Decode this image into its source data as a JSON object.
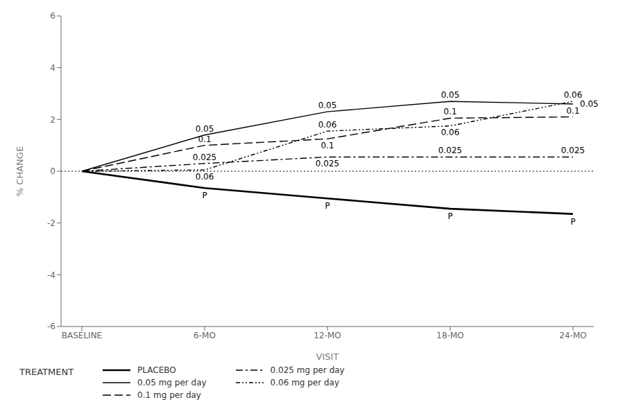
{
  "chart_data": {
    "type": "line",
    "categories": [
      "BASELINE",
      "6-MO",
      "12-MO",
      "18-MO",
      "24-MO"
    ],
    "xlabel": "VISIT",
    "ylabel": "% CHANGE",
    "legend_title": "TREATMENT",
    "ylim": [
      -6,
      6
    ],
    "yticks": [
      -6,
      -4,
      -2,
      0,
      2,
      4,
      6
    ],
    "grid": false,
    "legend": "bottom",
    "hlines": [
      0
    ],
    "series": [
      {
        "name": "PLACEBO",
        "color": "#000000",
        "line_style": "thick",
        "values": [
          0,
          -0.65,
          -1.05,
          -1.45,
          -1.65
        ]
      },
      {
        "name": "0.025 mg per day",
        "color": "#000000",
        "line_style": "dashdot",
        "values": [
          0,
          0.3,
          0.55,
          0.55,
          0.55
        ]
      },
      {
        "name": "0.05 mg per day",
        "color": "#000000",
        "line_style": "solid",
        "values": [
          0,
          1.4,
          2.3,
          2.7,
          2.6
        ]
      },
      {
        "name": "0.06 mg per day",
        "color": "#000000",
        "line_style": "dashdotdot",
        "values": [
          0,
          0.05,
          1.55,
          1.75,
          2.7
        ]
      },
      {
        "name": "0.1 mg per day",
        "color": "#000000",
        "line_style": "dashed",
        "values": [
          0,
          1.0,
          1.25,
          2.05,
          2.1
        ]
      }
    ],
    "annotations": [
      {
        "text": "P",
        "x": "6-MO",
        "y": -0.68,
        "position": "below"
      },
      {
        "text": "P",
        "x": "12-MO",
        "y": -1.08,
        "position": "below"
      },
      {
        "text": "P",
        "x": "18-MO",
        "y": -1.48,
        "position": "below"
      },
      {
        "text": "P",
        "x": "24-MO",
        "y": -1.68,
        "position": "below"
      },
      {
        "text": "0.025",
        "x": "6-MO",
        "y": 0.3,
        "position": "above"
      },
      {
        "text": "0.025",
        "x": "12-MO",
        "y": 0.55,
        "position": "below"
      },
      {
        "text": "0.025",
        "x": "18-MO",
        "y": 0.55,
        "position": "above"
      },
      {
        "text": "0.025",
        "x": "24-MO",
        "y": 0.55,
        "position": "above"
      },
      {
        "text": "0.05",
        "x": "6-MO",
        "y": 1.4,
        "position": "above"
      },
      {
        "text": "0.05",
        "x": "12-MO",
        "y": 2.3,
        "position": "above"
      },
      {
        "text": "0.05",
        "x": "18-MO",
        "y": 2.7,
        "position": "above"
      },
      {
        "text": "0.05",
        "x": "24-MO",
        "y": 2.6,
        "position": "right"
      },
      {
        "text": "0.06",
        "x": "6-MO",
        "y": 0.05,
        "position": "below"
      },
      {
        "text": "0.06",
        "x": "12-MO",
        "y": 1.55,
        "position": "above"
      },
      {
        "text": "0.06",
        "x": "18-MO",
        "y": 1.75,
        "position": "below"
      },
      {
        "text": "0.06",
        "x": "24-MO",
        "y": 2.7,
        "position": "above"
      },
      {
        "text": "0.1",
        "x": "6-MO",
        "y": 1.0,
        "position": "above"
      },
      {
        "text": "0.1",
        "x": "12-MO",
        "y": 1.25,
        "position": "below"
      },
      {
        "text": "0.1",
        "x": "18-MO",
        "y": 2.05,
        "position": "above"
      },
      {
        "text": "0.1",
        "x": "24-MO",
        "y": 2.1,
        "position": "above"
      }
    ]
  }
}
